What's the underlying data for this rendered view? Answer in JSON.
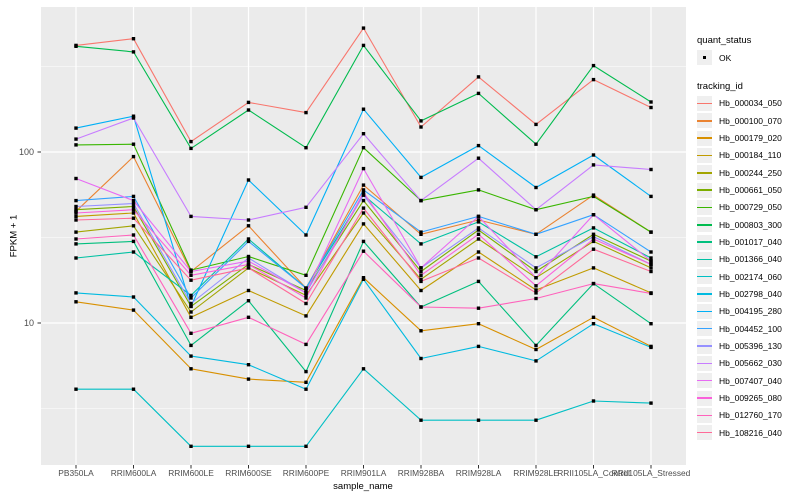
{
  "figure": {
    "background": "#FFFFFF"
  },
  "axes": {
    "y_title": "FPKM + 1",
    "x_title": "sample_name",
    "y_tick_labels": [
      "100",
      "10"
    ],
    "text_color": "#4D4D4D"
  },
  "legend": {
    "quant_status_title": "quant_status",
    "quant_status_items": [
      {
        "label": "OK",
        "symbol": "point"
      }
    ],
    "tracking_title": "tracking_id"
  },
  "chart_data": {
    "type": "line",
    "title": "",
    "xlabel": "sample_name",
    "ylabel": "FPKM + 1",
    "y_scale": "log10",
    "ylim": [
      1.5,
      700
    ],
    "y_major_ticks": [
      10,
      100
    ],
    "y_minor_ticks": [
      3.162,
      31.62,
      316.2
    ],
    "grid": true,
    "legend_position": "right",
    "panel_background": "#EBEBEB",
    "grid_color": "#FFFFFF",
    "point_color": "#000000",
    "categories": [
      "PB350LA",
      "RRIM600LA",
      "RRIM600LE",
      "RRIM600SE",
      "RRIM600PE",
      "RRIM901LA",
      "RRIM928BA",
      "RRIM928LA",
      "RRIM928LE",
      "RRII105LA_Control",
      "RRII105LA_Stressed"
    ],
    "series": [
      {
        "name": "Hb_000034_050",
        "color": "#F8766D",
        "values": [
          420,
          460,
          115,
          195,
          170,
          530,
          140,
          275,
          145,
          265,
          182
        ]
      },
      {
        "name": "Hb_000100_070",
        "color": "#EA8331",
        "values": [
          45,
          94,
          20,
          37,
          16,
          64,
          33,
          40,
          33,
          56,
          34
        ]
      },
      {
        "name": "Hb_000179_020",
        "color": "#D89000",
        "values": [
          13.3,
          11.9,
          5.4,
          4.7,
          4.5,
          18.4,
          9,
          9.9,
          7,
          10.8,
          7.3
        ]
      },
      {
        "name": "Hb_000184_110",
        "color": "#C09B00",
        "values": [
          42,
          44,
          10.8,
          15.5,
          11,
          38,
          15.5,
          26,
          15.6,
          21,
          15
        ]
      },
      {
        "name": "Hb_000244_250",
        "color": "#A3A500",
        "values": [
          34,
          37,
          11.6,
          21,
          14.5,
          44,
          18,
          31,
          18.4,
          30,
          21
        ]
      },
      {
        "name": "Hb_000661_050",
        "color": "#7CAE00",
        "values": [
          46,
          48,
          12.5,
          22,
          15.5,
          52,
          20,
          35,
          20,
          33,
          23
        ]
      },
      {
        "name": "Hb_000729_050",
        "color": "#39B600",
        "values": [
          110,
          111,
          20.4,
          24.5,
          19,
          106,
          52,
          60,
          46,
          55,
          34
        ]
      },
      {
        "name": "Hb_000803_300",
        "color": "#00BB4E",
        "values": [
          415,
          385,
          105,
          176,
          106,
          420,
          152,
          220,
          111,
          320,
          196
        ]
      },
      {
        "name": "Hb_001017_040",
        "color": "#00BF7D",
        "values": [
          29,
          30,
          7.4,
          13.5,
          5.2,
          30,
          12.4,
          17.5,
          7.4,
          17,
          9.9
        ]
      },
      {
        "name": "Hb_001366_040",
        "color": "#00C1A3",
        "values": [
          24,
          26,
          14.5,
          31,
          16,
          56,
          29,
          39,
          24.4,
          36,
          24
        ]
      },
      {
        "name": "Hb_002174_060",
        "color": "#00BFC4",
        "values": [
          4.1,
          4.1,
          1.9,
          1.9,
          1.9,
          5.4,
          2.7,
          2.7,
          2.7,
          3.5,
          3.4
        ]
      },
      {
        "name": "Hb_002798_040",
        "color": "#00BAE0",
        "values": [
          15,
          14.2,
          6.4,
          5.7,
          4.1,
          18,
          6.2,
          7.3,
          6,
          9.9,
          7.2
        ]
      },
      {
        "name": "Hb_004195_280",
        "color": "#00B0F6",
        "values": [
          138,
          162,
          12.5,
          68.6,
          32.7,
          178,
          71,
          109,
          62,
          96,
          55
        ]
      },
      {
        "name": "Hb_004452_100",
        "color": "#35A2FF",
        "values": [
          52,
          55,
          14,
          30,
          16,
          60,
          34,
          42,
          33,
          43,
          26
        ]
      },
      {
        "name": "Hb_005396_130",
        "color": "#9590FF",
        "values": [
          48,
          50,
          13,
          24,
          15,
          56,
          21,
          36,
          21,
          32,
          22
        ]
      },
      {
        "name": "Hb_005662_030",
        "color": "#C77CFF",
        "values": [
          119,
          158,
          42,
          40,
          47.5,
          128,
          52,
          92,
          46,
          84,
          79
        ]
      },
      {
        "name": "Hb_007407_040",
        "color": "#E76BF3",
        "values": [
          70,
          52,
          20,
          23,
          15,
          80,
          21,
          42,
          18.4,
          43,
          23
        ]
      },
      {
        "name": "Hb_009265_080",
        "color": "#FA62DB",
        "values": [
          44,
          46,
          19,
          22,
          14,
          58,
          19,
          33,
          16.5,
          31,
          22
        ]
      },
      {
        "name": "Hb_012760_170",
        "color": "#FF62BC",
        "values": [
          31,
          32.7,
          8.7,
          10.8,
          7.5,
          26.3,
          12.4,
          12.2,
          13.9,
          17,
          14.9
        ]
      },
      {
        "name": "Hb_108216_040",
        "color": "#FF6A98",
        "values": [
          40,
          41,
          17.8,
          21,
          13,
          47,
          17.5,
          24,
          15,
          27,
          20
        ]
      }
    ]
  }
}
